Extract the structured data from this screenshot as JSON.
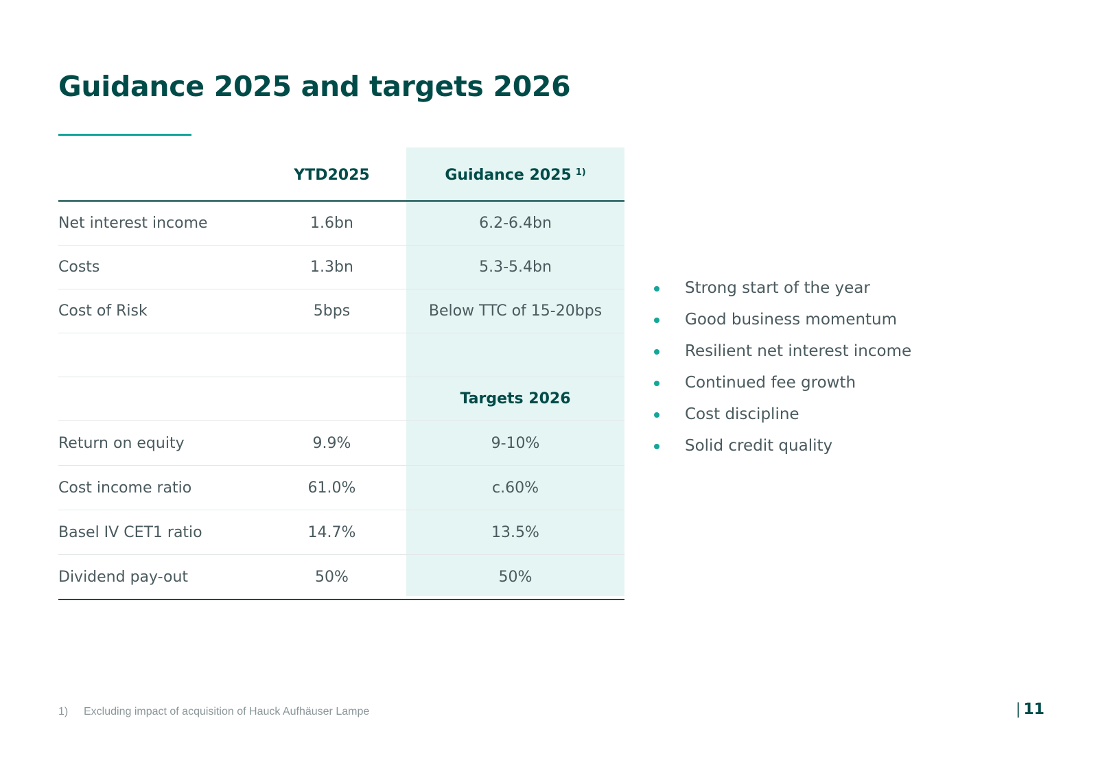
{
  "title": "Guidance 2025 and targets 2026",
  "colors": {
    "title": "#004b48",
    "accent": "#16a59a",
    "highlight_bg": "#e5f5f3",
    "body_text": "#4a5a5e"
  },
  "table": {
    "headers": {
      "label": "",
      "ytd": "YTD2025",
      "guidance": "Guidance 2025",
      "guidance_note": "1)"
    },
    "rows_2025": [
      {
        "label": "Net interest income",
        "ytd": "1.6bn",
        "guidance": "6.2-6.4bn"
      },
      {
        "label": "Costs",
        "ytd": "1.3bn",
        "guidance": "5.3-5.4bn"
      },
      {
        "label": "Cost of Risk",
        "ytd": "5bps",
        "guidance": "Below TTC of 15-20bps"
      }
    ],
    "targets_header": "Targets 2026",
    "rows_2026": [
      {
        "label": "Return on equity",
        "ytd": "9.9%",
        "guidance": "9-10%"
      },
      {
        "label": "Cost income ratio",
        "ytd": "61.0%",
        "guidance": "c.60%"
      },
      {
        "label": "Basel IV CET1 ratio",
        "ytd": "14.7%",
        "guidance": "13.5%"
      },
      {
        "label": "Dividend pay-out",
        "ytd": "50%",
        "guidance": "50%"
      }
    ]
  },
  "bullets": [
    "Strong start of the year",
    "Good business momentum",
    "Resilient net interest income",
    "Continued fee growth",
    "Cost discipline",
    "Solid credit quality"
  ],
  "footnote": {
    "marker": "1)",
    "text": "Excluding impact of acquisition of Hauck Aufhäuser Lampe"
  },
  "page": {
    "separator": "|",
    "number": "11"
  }
}
